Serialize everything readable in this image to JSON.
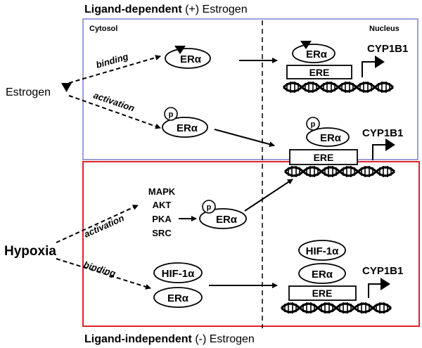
{
  "titles": {
    "top_bold": "Ligand-dependent",
    "top_rest": " (+) Estrogen",
    "bottom_bold": "Ligand-independent",
    "bottom_rest": " (-) Estrogen"
  },
  "compartments": {
    "cytosol": "Cytosol",
    "nucleus": "Nucleus"
  },
  "inputs": {
    "estrogen": "Estrogen",
    "hypoxia": "Hypoxia"
  },
  "paths": {
    "binding": "binding",
    "activation": "activation"
  },
  "kinases": [
    "MAPK",
    "AKT",
    "PKA",
    "SRC"
  ],
  "molecules": {
    "er": "ERα",
    "ere": "ERE",
    "hif": "HIF-1α",
    "phospho": "p"
  },
  "gene": "CYP1B1",
  "colors": {
    "ligand_dependent_box": "#9d9fdb",
    "ligand_independent_box": "#e0232b"
  }
}
